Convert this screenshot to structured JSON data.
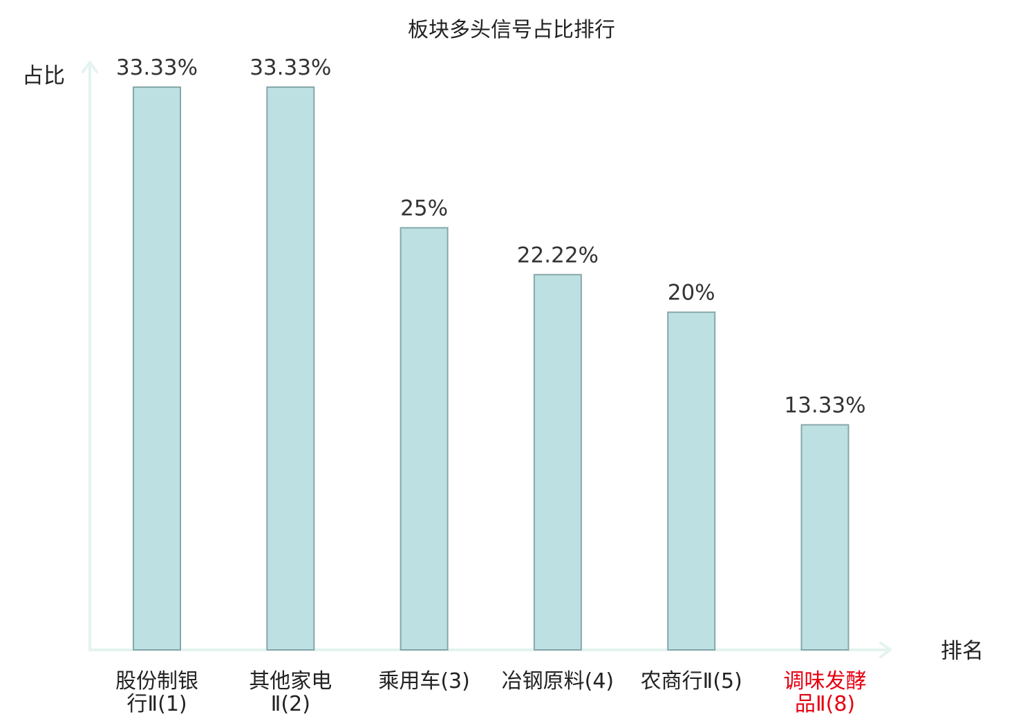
{
  "chart_data": {
    "type": "bar",
    "title": "板块多头信号占比排行",
    "xlabel": "排名",
    "ylabel": "占比",
    "categories": [
      [
        "股份制银",
        "行Ⅱ(1)"
      ],
      [
        "其他家电",
        "Ⅱ(2)"
      ],
      [
        "乘用车(3)"
      ],
      [
        "冶钢原料(4)"
      ],
      [
        "农商行Ⅱ(5)"
      ],
      [
        "调味发酵",
        "品Ⅱ(8)"
      ]
    ],
    "values": [
      33.33,
      33.33,
      25,
      22.22,
      20,
      13.33
    ],
    "value_labels": [
      "33.33%",
      "33.33%",
      "25%",
      "22.22%",
      "20%",
      "13.33%"
    ],
    "highlight_index": 5,
    "ylim": [
      0,
      34.6
    ],
    "grid": false,
    "colors": {
      "bar_fill": "#bde0e3",
      "bar_stroke": "#86a7a8",
      "axis": "#e3f3f0",
      "text": "#222222",
      "value_text": "#333333",
      "highlight_text": "#e60012"
    }
  }
}
